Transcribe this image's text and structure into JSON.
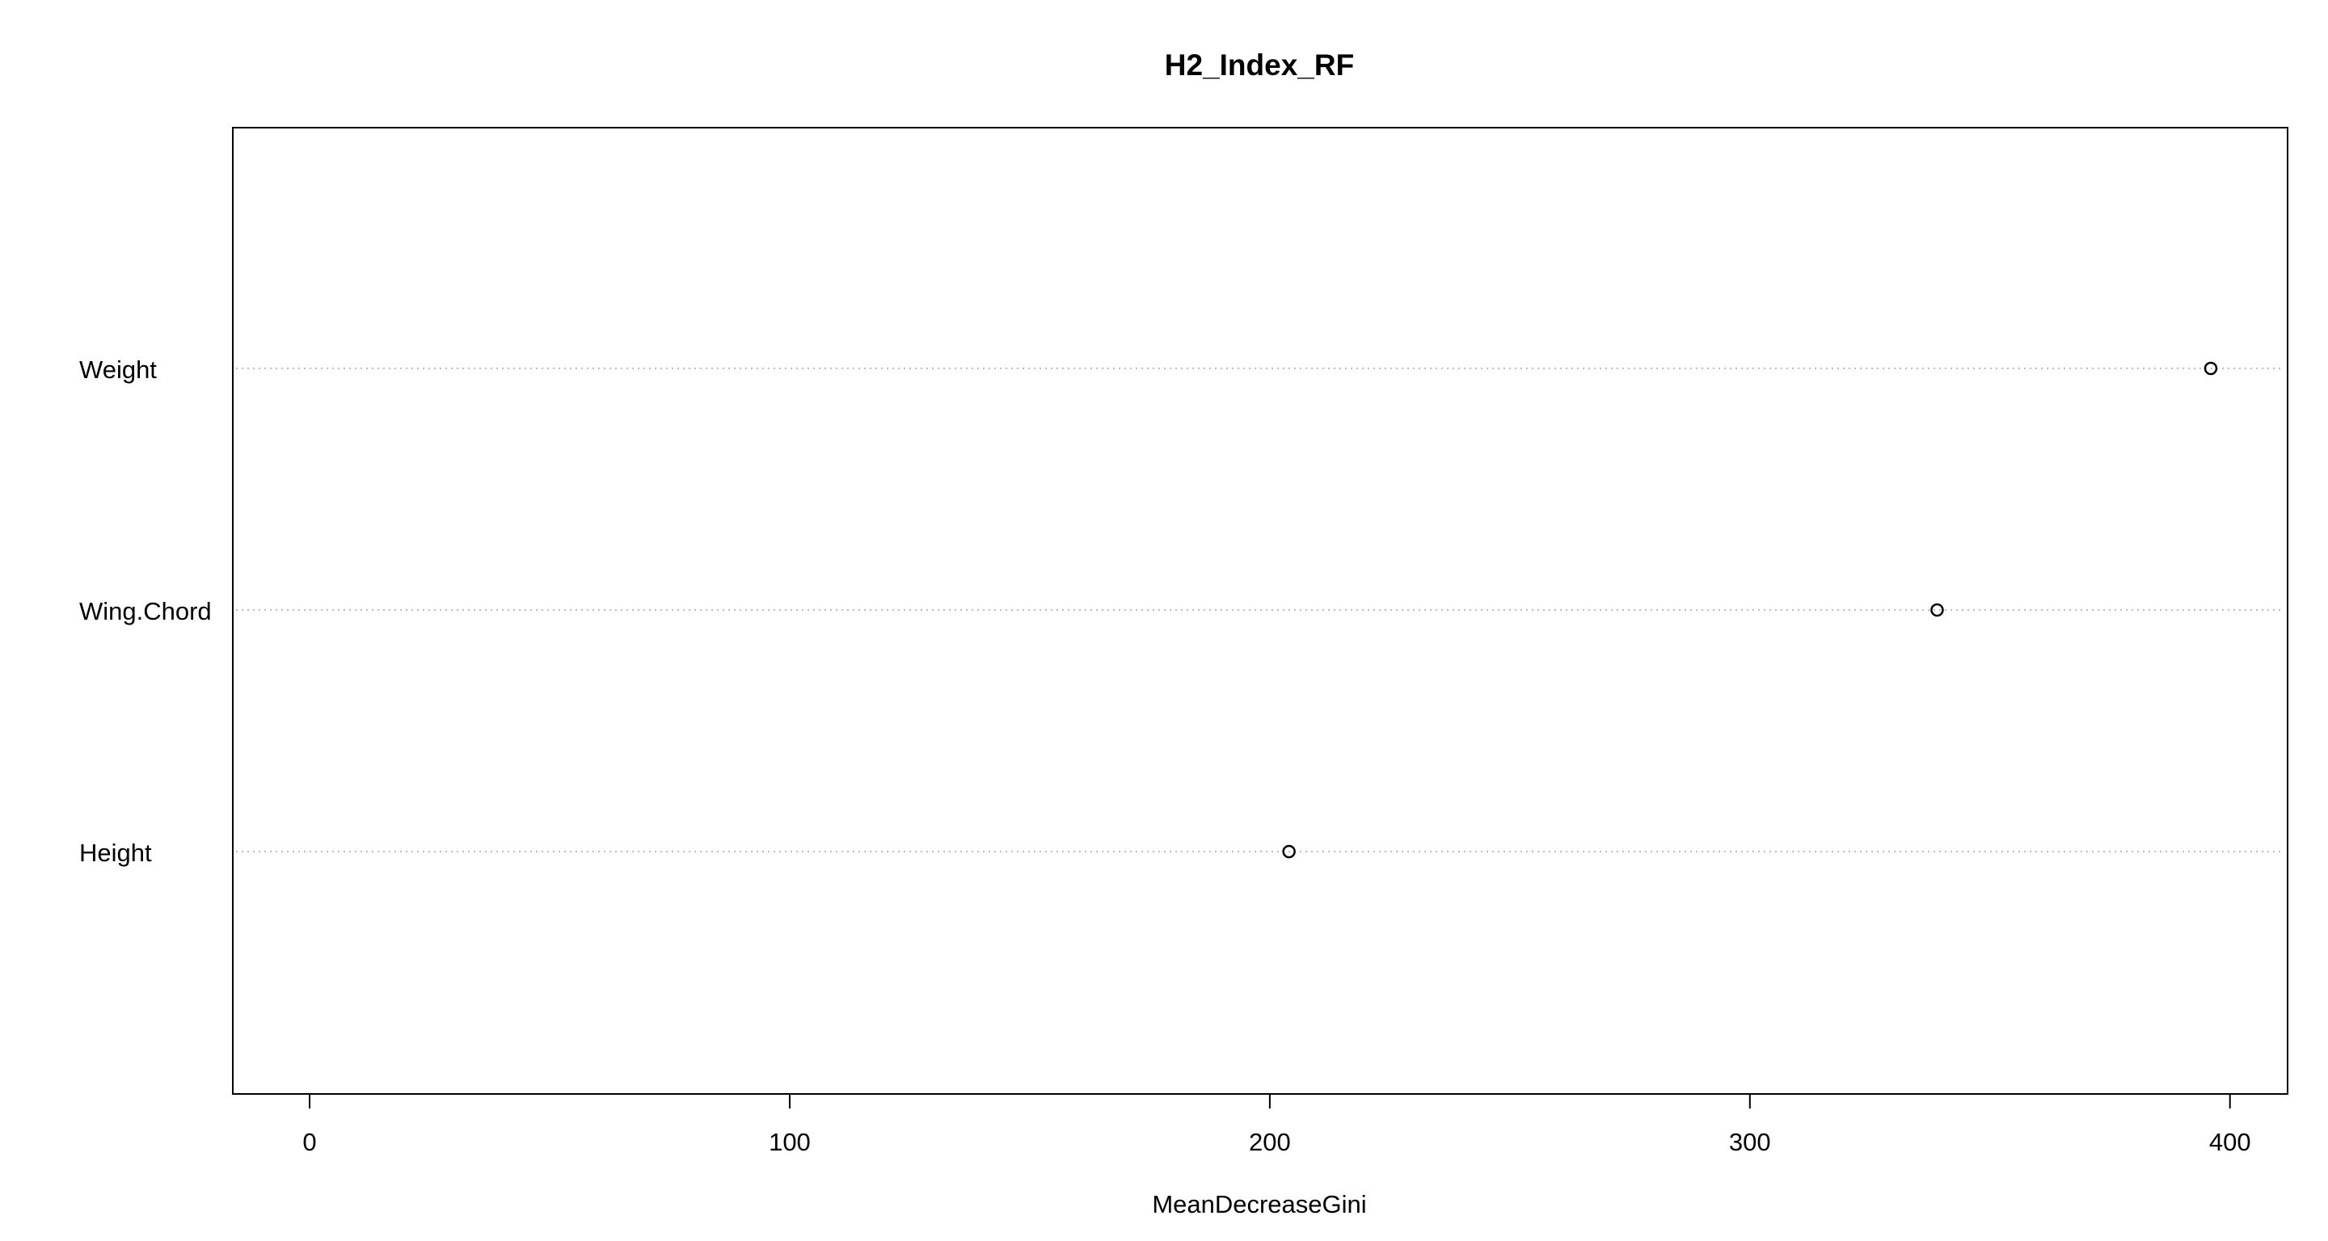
{
  "chart_data": {
    "type": "dotchart",
    "title": "H2_Index_RF",
    "xlabel": "MeanDecreaseGini",
    "ylabel": "",
    "xlim": [
      -16,
      412
    ],
    "xticks": [
      0,
      100,
      200,
      300,
      400
    ],
    "grid": "dotted horizontal guide lines",
    "legend": "none",
    "categories": [
      "Weight",
      "Wing.Chord",
      "Height"
    ],
    "values": [
      396,
      339,
      204
    ],
    "colors": {
      "points": "#000000",
      "guides": "#bebebe",
      "frame": "#000000"
    }
  }
}
